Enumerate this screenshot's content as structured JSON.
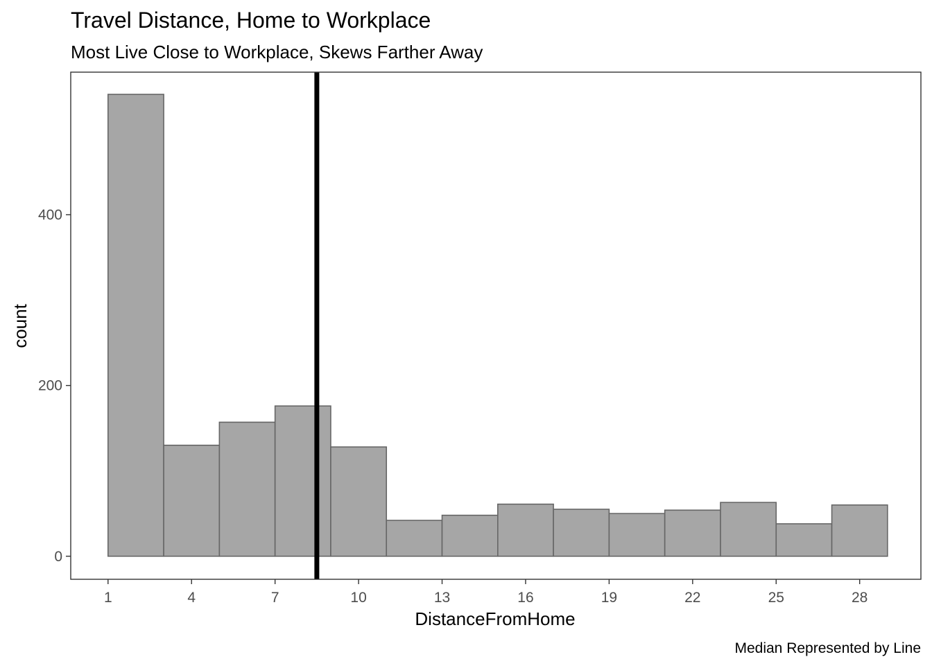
{
  "chart_data": {
    "type": "bar",
    "title": "Travel Distance, Home to Workplace",
    "subtitle": "Most Live Close to Workplace, Skews Farther Away",
    "xlabel": "DistanceFromHome",
    "ylabel": "count",
    "caption": "Median Represented by Line",
    "bins": [
      {
        "start": 0,
        "end": 2,
        "count": 541
      },
      {
        "start": 2,
        "end": 4,
        "count": 130
      },
      {
        "start": 4,
        "end": 6,
        "count": 157
      },
      {
        "start": 6,
        "end": 8,
        "count": 176
      },
      {
        "start": 8,
        "end": 10,
        "count": 128
      },
      {
        "start": 10,
        "end": 12,
        "count": 42
      },
      {
        "start": 12,
        "end": 14,
        "count": 48
      },
      {
        "start": 14,
        "end": 16,
        "count": 61
      },
      {
        "start": 16,
        "end": 18,
        "count": 55
      },
      {
        "start": 18,
        "end": 20,
        "count": 50
      },
      {
        "start": 20,
        "end": 22,
        "count": 54
      },
      {
        "start": 22,
        "end": 24,
        "count": 63
      },
      {
        "start": 24,
        "end": 26,
        "count": 38
      },
      {
        "start": 26,
        "end": 28,
        "count": 60
      }
    ],
    "median": 7.5,
    "xlim": [
      -1.34,
      29.2
    ],
    "ylim": [
      -27,
      567
    ],
    "x_ticks": [
      1,
      4,
      7,
      10,
      13,
      16,
      19,
      22,
      25,
      28
    ],
    "x_tick_labels": [
      "1",
      "4",
      "7",
      "10",
      "13",
      "16",
      "19",
      "22",
      "25",
      "28"
    ],
    "x_tick_offset": -1,
    "y_ticks": [
      0,
      200,
      400
    ],
    "y_tick_labels": [
      "0",
      "200",
      "400"
    ],
    "grid": false,
    "colors": {
      "bar_fill": "#a6a6a6",
      "bar_stroke": "#666666",
      "median_line": "#000000",
      "panel_border": "#333333"
    }
  }
}
